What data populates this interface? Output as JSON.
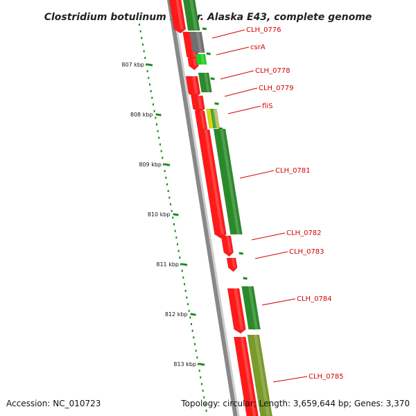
{
  "title": "Clostridium botulinum E3 str. Alaska E43, complete genome",
  "footer": {
    "accession": "Accession: NC_010723",
    "stats": "Topology: circular; Length: 3,659,644 bp; Genes: 3,370"
  },
  "colors": {
    "forward_cds": "#ff1a1a",
    "reverse_cds": "#2a8a2a",
    "backbone": "#888888",
    "label": "#d40000",
    "tick": "#1a8a1a"
  },
  "kbp_marks": [
    "807 kbp",
    "808 kbp",
    "809 kbp",
    "810 kbp",
    "811 kbp",
    "812 kbp",
    "813 kbp"
  ],
  "gene_labels": [
    "CLH_0776",
    "csrA",
    "CLH_0778",
    "CLH_0779",
    "fliS",
    "CLH_0781",
    "CLH_0782",
    "CLH_0783",
    "CLH_0784",
    "CLH_0785"
  ]
}
